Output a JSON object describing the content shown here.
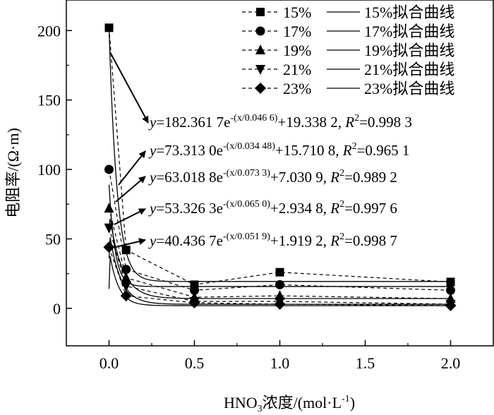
{
  "chart_data": {
    "type": "scatter",
    "title": "",
    "xlabel": {
      "main": "HNO",
      "sub": "3",
      "rest": "浓度/(mol·L",
      "sup": "-1",
      "close": ")"
    },
    "ylabel": "电阻率/(Ω·m)",
    "xlim": [
      -0.25,
      2.25
    ],
    "ylim": [
      -27,
      222
    ],
    "x_ticks": [
      "0.0",
      "0.5",
      "1.0",
      "1.5",
      "2.0"
    ],
    "x_tick_values": [
      0.0,
      0.5,
      1.0,
      1.5,
      2.0
    ],
    "y_ticks": [
      "0",
      "50",
      "100",
      "150",
      "200"
    ],
    "y_tick_values": [
      0,
      50,
      100,
      150,
      200
    ],
    "x": [
      0.0,
      0.1,
      0.5,
      1.0,
      2.0
    ],
    "series": [
      {
        "name": "15%",
        "fit_name": "15%拟合曲线",
        "marker": "square",
        "values": [
          202,
          42,
          17,
          26,
          19
        ],
        "fit": {
          "a": 182.3617,
          "t": 0.0466,
          "c": 19.3382
        },
        "eq": {
          "coef": "=182.361 7e",
          "exp": "-(x/0.046 6)",
          "rest": "+19.338 2, ",
          "r2": "=0.998 3"
        }
      },
      {
        "name": "17%",
        "fit_name": "17%拟合曲线",
        "marker": "circle",
        "values": [
          100,
          28,
          13,
          17,
          13
        ],
        "fit": {
          "a": 73.313,
          "t": 0.03448,
          "c": 15.7108
        },
        "eq": {
          "coef": "=73.313 0e",
          "exp": "-(x/0.034 48)",
          "rest": "+15.710 8, ",
          "r2": "=0.965 1"
        }
      },
      {
        "name": "19%",
        "fit_name": "19%拟合曲线",
        "marker": "triangle-up",
        "values": [
          72,
          22,
          8,
          9,
          7
        ],
        "fit": {
          "a": 63.0188,
          "t": 0.0733,
          "c": 7.0309
        },
        "eq": {
          "coef": "=63.018 8e",
          "exp": "-(x/0.073 3)",
          "rest": "+7.030 9,  ",
          "r2": "=0.989 2"
        }
      },
      {
        "name": "21%",
        "fit_name": "21%拟合曲线",
        "marker": "triangle-down",
        "values": [
          58,
          16,
          5,
          5,
          3
        ],
        "fit": {
          "a": 53.3263,
          "t": 0.065,
          "c": 2.9348
        },
        "eq": {
          "coef": "=53.326 3e",
          "exp": "-(x/0.065 0)",
          "rest": "+2.934 8,  ",
          "r2": "=0.997 6"
        }
      },
      {
        "name": "23%",
        "fit_name": "23%拟合曲线",
        "marker": "diamond",
        "values": [
          44,
          9,
          4,
          3,
          2
        ],
        "fit": {
          "a": 40.4367,
          "t": 0.0519,
          "c": 1.9192
        },
        "eq": {
          "coef": "=40.436 7e",
          "exp": "-(x/0.051 9)",
          "rest": "+1.919 2, ",
          "r2": "=0.998 7"
        }
      }
    ],
    "eq_labels": {
      "y": "y",
      "R": "R",
      "R_sup": "2"
    },
    "legend_position": "top-right"
  }
}
